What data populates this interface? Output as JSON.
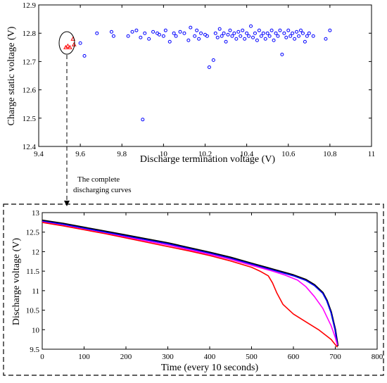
{
  "chart_data": [
    {
      "type": "scatter",
      "xlabel": "Discharge termination voltage (V)",
      "ylabel": "Charge static voltage (V)",
      "xlim": [
        9.4,
        11
      ],
      "ylim": [
        12.4,
        12.9
      ],
      "xticks": [
        "9.4",
        "9.6",
        "9.8",
        "10",
        "10.2",
        "10.4",
        "10.6",
        "10.8",
        "11"
      ],
      "yticks": [
        "12.4",
        "12.5",
        "12.6",
        "12.7",
        "12.8",
        "12.9"
      ],
      "grid": false,
      "series": [
        {
          "marker": "circle",
          "color": "#0000ff",
          "points": [
            [
              9.6,
              12.765
            ],
            [
              9.62,
              12.72
            ],
            [
              9.68,
              12.8
            ],
            [
              9.75,
              12.805
            ],
            [
              9.76,
              12.79
            ],
            [
              9.83,
              12.79
            ],
            [
              9.85,
              12.805
            ],
            [
              9.87,
              12.81
            ],
            [
              9.89,
              12.785
            ],
            [
              9.91,
              12.8
            ],
            [
              9.9,
              12.495
            ],
            [
              9.93,
              12.78
            ],
            [
              9.95,
              12.805
            ],
            [
              9.97,
              12.8
            ],
            [
              9.98,
              12.795
            ],
            [
              10.0,
              12.79
            ],
            [
              10.01,
              12.81
            ],
            [
              10.03,
              12.77
            ],
            [
              10.05,
              12.8
            ],
            [
              10.06,
              12.79
            ],
            [
              10.08,
              12.805
            ],
            [
              10.1,
              12.8
            ],
            [
              10.12,
              12.775
            ],
            [
              10.13,
              12.82
            ],
            [
              10.15,
              12.79
            ],
            [
              10.16,
              12.81
            ],
            [
              10.17,
              12.78
            ],
            [
              10.18,
              12.8
            ],
            [
              10.2,
              12.795
            ],
            [
              10.21,
              12.79
            ],
            [
              10.22,
              12.68
            ],
            [
              10.24,
              12.705
            ],
            [
              10.25,
              12.8
            ],
            [
              10.26,
              12.785
            ],
            [
              10.27,
              12.815
            ],
            [
              10.28,
              12.79
            ],
            [
              10.29,
              12.8
            ],
            [
              10.3,
              12.77
            ],
            [
              10.31,
              12.795
            ],
            [
              10.32,
              12.81
            ],
            [
              10.33,
              12.79
            ],
            [
              10.34,
              12.8
            ],
            [
              10.35,
              12.78
            ],
            [
              10.36,
              12.805
            ],
            [
              10.37,
              12.79
            ],
            [
              10.38,
              12.81
            ],
            [
              10.39,
              12.78
            ],
            [
              10.4,
              12.8
            ],
            [
              10.41,
              12.79
            ],
            [
              10.42,
              12.825
            ],
            [
              10.43,
              12.785
            ],
            [
              10.44,
              12.8
            ],
            [
              10.45,
              12.775
            ],
            [
              10.46,
              12.81
            ],
            [
              10.47,
              12.79
            ],
            [
              10.48,
              12.8
            ],
            [
              10.49,
              12.78
            ],
            [
              10.5,
              12.8
            ],
            [
              10.51,
              12.79
            ],
            [
              10.52,
              12.81
            ],
            [
              10.53,
              12.775
            ],
            [
              10.54,
              12.8
            ],
            [
              10.55,
              12.79
            ],
            [
              10.56,
              12.81
            ],
            [
              10.57,
              12.725
            ],
            [
              10.58,
              12.8
            ],
            [
              10.59,
              12.785
            ],
            [
              10.6,
              12.81
            ],
            [
              10.61,
              12.79
            ],
            [
              10.62,
              12.8
            ],
            [
              10.63,
              12.78
            ],
            [
              10.64,
              12.805
            ],
            [
              10.65,
              12.79
            ],
            [
              10.66,
              12.81
            ],
            [
              10.67,
              12.8
            ],
            [
              10.68,
              12.77
            ],
            [
              10.69,
              12.79
            ],
            [
              10.7,
              12.8
            ],
            [
              10.72,
              12.79
            ],
            [
              10.78,
              12.78
            ],
            [
              10.8,
              12.81
            ]
          ]
        },
        {
          "marker": "triangle",
          "color": "#ff0000",
          "points": [
            [
              9.53,
              12.75
            ],
            [
              9.54,
              12.755
            ],
            [
              9.55,
              12.75
            ],
            [
              9.565,
              12.78
            ],
            [
              9.57,
              12.76
            ]
          ]
        }
      ]
    },
    {
      "type": "line",
      "xlabel": "Time (every 10 seconds)",
      "ylabel": "Discharge voltage (V)",
      "xlim": [
        0,
        800
      ],
      "ylim": [
        9.5,
        13
      ],
      "xticks": [
        "0",
        "100",
        "200",
        "300",
        "400",
        "500",
        "600",
        "700",
        "800"
      ],
      "yticks": [
        "9.5",
        "10",
        "10.5",
        "11",
        "11.5",
        "12",
        "12.5",
        "13"
      ],
      "grid": false,
      "series": [
        {
          "color": "#000000",
          "x": [
            0,
            50,
            100,
            150,
            200,
            250,
            300,
            350,
            400,
            450,
            500,
            550,
            600,
            630,
            650,
            670,
            680,
            690,
            700,
            706
          ],
          "y": [
            12.8,
            12.72,
            12.62,
            12.52,
            12.42,
            12.32,
            12.22,
            12.1,
            11.98,
            11.85,
            11.7,
            11.55,
            11.4,
            11.28,
            11.15,
            10.95,
            10.75,
            10.45,
            10.0,
            9.58
          ]
        },
        {
          "color": "#0000ff",
          "x": [
            0,
            50,
            100,
            150,
            200,
            250,
            300,
            350,
            400,
            450,
            500,
            550,
            600,
            630,
            650,
            670,
            680,
            690,
            700,
            705
          ],
          "y": [
            12.78,
            12.7,
            12.6,
            12.5,
            12.4,
            12.3,
            12.2,
            12.08,
            11.96,
            11.83,
            11.68,
            11.53,
            11.38,
            11.26,
            11.13,
            10.93,
            10.73,
            10.43,
            9.98,
            9.6
          ]
        },
        {
          "color": "#ff00ff",
          "x": [
            0,
            50,
            100,
            150,
            200,
            250,
            300,
            350,
            400,
            450,
            500,
            550,
            580,
            610,
            630,
            650,
            670,
            690,
            700,
            705
          ],
          "y": [
            12.76,
            12.67,
            12.57,
            12.47,
            12.37,
            12.27,
            12.17,
            12.05,
            11.93,
            11.8,
            11.65,
            11.5,
            11.4,
            11.27,
            11.1,
            10.85,
            10.55,
            10.1,
            9.8,
            9.6
          ]
        },
        {
          "color": "#ff0000",
          "x": [
            0,
            50,
            100,
            150,
            200,
            250,
            300,
            350,
            400,
            450,
            500,
            520,
            540,
            550,
            560,
            575,
            600,
            630,
            660,
            690,
            705
          ],
          "y": [
            12.75,
            12.66,
            12.56,
            12.46,
            12.35,
            12.24,
            12.13,
            12.02,
            11.9,
            11.76,
            11.6,
            11.5,
            11.38,
            11.2,
            10.95,
            10.65,
            10.4,
            10.2,
            10.0,
            9.75,
            9.55
          ]
        }
      ]
    }
  ],
  "annotation": {
    "line1": "The complete",
    "line2": "discharging curves"
  }
}
